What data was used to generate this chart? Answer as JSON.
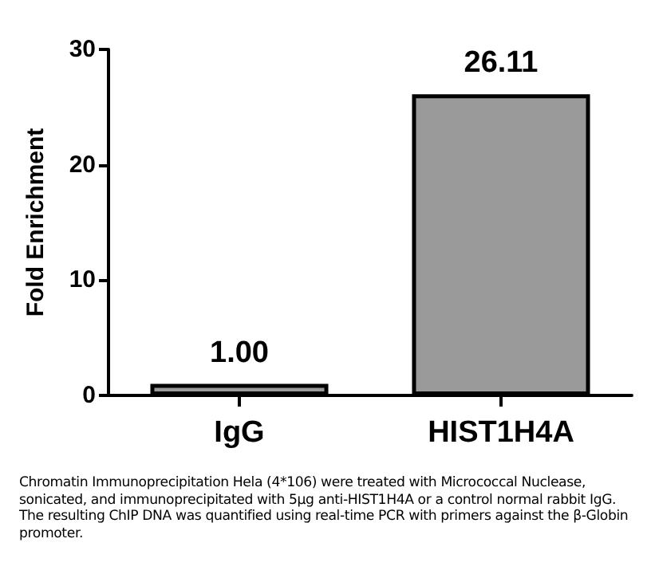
{
  "chart_data": {
    "type": "bar",
    "ylabel": "Fold Enrichment",
    "categories": [
      "IgG",
      "HIST1H4A"
    ],
    "values": [
      1.0,
      26.11
    ],
    "value_labels": [
      "1.00",
      "26.11"
    ],
    "color": "#9a9a9a",
    "ylim": [
      0,
      30
    ],
    "yticks": [
      0,
      10,
      20,
      30
    ],
    "annotations": [
      "Chromatin Immunoprecipitation Hela (4*106) were treated with Micrococcal Nuclease, sonicated, and immunoprecipitated with 5μg anti-HIST1H4A or a control normal rabbit IgG. The resulting ChIP DNA was quantified using real-time PCR with primers against the β-Globin promoter."
    ]
  }
}
